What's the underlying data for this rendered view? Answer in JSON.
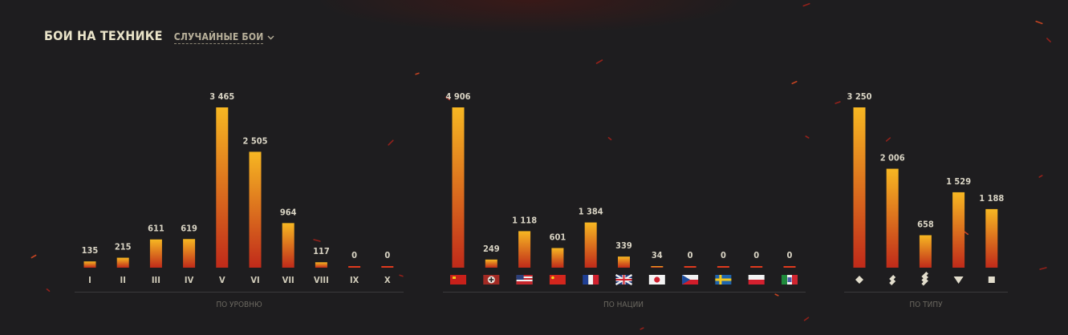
{
  "title": "БОИ НА ТЕХНИКЕ",
  "filter": {
    "label": "СЛУЧАЙНЫЕ БОИ"
  },
  "colors": {
    "bar_top": "#f7b722",
    "bar_bottom": "#c02a1a",
    "baseline": "#e03a1e",
    "background": "#1e1d1f"
  },
  "chart_data": [
    {
      "type": "bar",
      "title": "ПО УРОВНЮ",
      "categories": [
        "I",
        "II",
        "III",
        "IV",
        "V",
        "VI",
        "VII",
        "VIII",
        "IX",
        "X"
      ],
      "values": [
        135,
        215,
        611,
        619,
        3465,
        2505,
        964,
        117,
        0,
        0
      ],
      "value_labels": [
        "135",
        "215",
        "611",
        "619",
        "3 465",
        "2 505",
        "964",
        "117",
        "0",
        "0"
      ]
    },
    {
      "type": "bar",
      "title": "ПО НАЦИИ",
      "categories": [
        "ussr-flag-icon",
        "germany-flag-icon",
        "usa-flag-icon",
        "china-flag-icon",
        "france-flag-icon",
        "uk-flag-icon",
        "japan-flag-icon",
        "czech-flag-icon",
        "sweden-flag-icon",
        "poland-flag-icon",
        "italy-flag-icon"
      ],
      "values": [
        4906,
        249,
        1118,
        601,
        1384,
        339,
        34,
        0,
        0,
        0,
        0
      ],
      "value_labels": [
        "4 906",
        "249",
        "1 118",
        "601",
        "1 384",
        "339",
        "34",
        "0",
        "0",
        "0",
        "0"
      ]
    },
    {
      "type": "bar",
      "title": "ПО ТИПУ",
      "categories": [
        "light-tank-icon",
        "medium-tank-icon",
        "heavy-tank-icon",
        "tank-destroyer-icon",
        "spg-icon"
      ],
      "values": [
        3250,
        2006,
        658,
        1529,
        1188
      ],
      "value_labels": [
        "3 250",
        "2 006",
        "658",
        "1 529",
        "1 188"
      ]
    }
  ]
}
